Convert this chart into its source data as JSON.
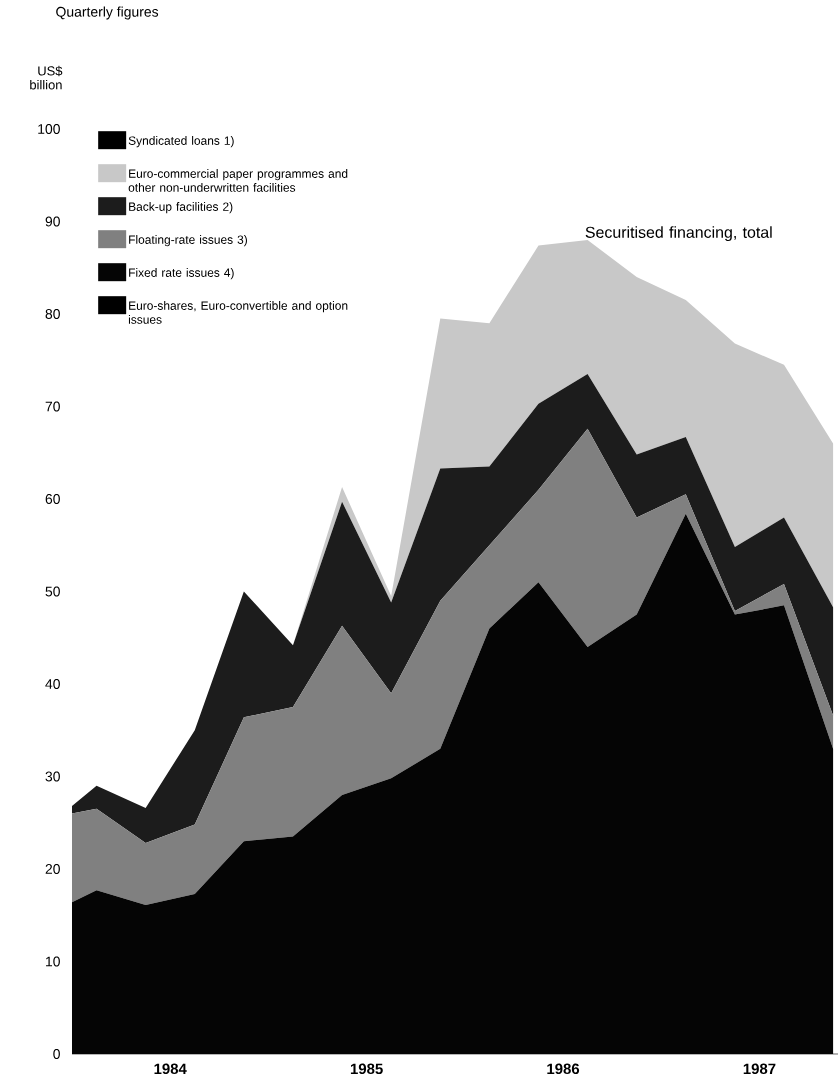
{
  "chart_data": {
    "type": "area",
    "stacked": true,
    "title": "Quarterly figures",
    "ylabel": "US$ billion",
    "x": [
      1984.0,
      1984.125,
      1984.375,
      1984.625,
      1984.875,
      1985.125,
      1985.375,
      1985.625,
      1985.875,
      1986.125,
      1986.375,
      1986.625,
      1986.875,
      1987.125,
      1987.375,
      1987.625,
      1987.875
    ],
    "series": [
      {
        "name": "Euro-shares, Euro-convertible and option issues",
        "color": "#000000",
        "values": [
          null,
          null,
          null,
          null,
          null,
          null,
          null,
          null,
          null,
          null,
          null,
          null,
          null,
          null,
          null,
          null,
          null
        ]
      },
      {
        "name": "Fixed rate issues 4)",
        "color": "#050505",
        "values": [
          16.4,
          17.7,
          16.1,
          17.3,
          23.0,
          23.5,
          28.0,
          29.8,
          33.0,
          46.0,
          51.0,
          44.0,
          47.5,
          58.4,
          47.5,
          48.5,
          33.0
        ]
      },
      {
        "name": "Floating-rate issues 3)",
        "color": "#808080",
        "values": [
          9.6,
          8.8,
          6.7,
          7.5,
          13.4,
          14.0,
          18.3,
          9.2,
          16.0,
          9.0,
          10.0,
          23.6,
          10.5,
          2.1,
          0.4,
          2.3,
          3.6
        ]
      },
      {
        "name": "Back-up facilities 2)",
        "color": "#1c1c1c",
        "values": [
          0.8,
          2.5,
          3.8,
          10.2,
          13.6,
          6.7,
          13.4,
          9.8,
          14.3,
          8.5,
          9.3,
          5.9,
          6.8,
          6.2,
          6.9,
          7.2,
          11.7
        ]
      },
      {
        "name": "Euro-commercial paper programmes and other non-underwritten facilities",
        "color": "#c8c8c8",
        "values": [
          0,
          0,
          0,
          0,
          0,
          0,
          1.6,
          0.7,
          16.2,
          15.5,
          17.1,
          14.5,
          19.2,
          14.8,
          22.0,
          16.5,
          17.7
        ]
      },
      {
        "name": "Syndicated loans 1)",
        "color": "#000000",
        "values": [
          null,
          null,
          null,
          null,
          null,
          null,
          null,
          null,
          null,
          null,
          null,
          null,
          null,
          null,
          null,
          null,
          null
        ]
      }
    ],
    "xlim": [
      1984.0,
      1987.9
    ],
    "ylim": [
      0,
      100
    ],
    "xticks": [
      {
        "value": 1984.5,
        "label": "1984"
      },
      {
        "value": 1985.5,
        "label": "1985"
      },
      {
        "value": 1986.5,
        "label": "1986"
      },
      {
        "value": 1987.5,
        "label": "1987"
      }
    ],
    "yticks": [
      0,
      10,
      20,
      30,
      40,
      50,
      60,
      70,
      80,
      90,
      100
    ],
    "legend": "top left",
    "annotations": [
      "Securitised financing, total"
    ]
  }
}
